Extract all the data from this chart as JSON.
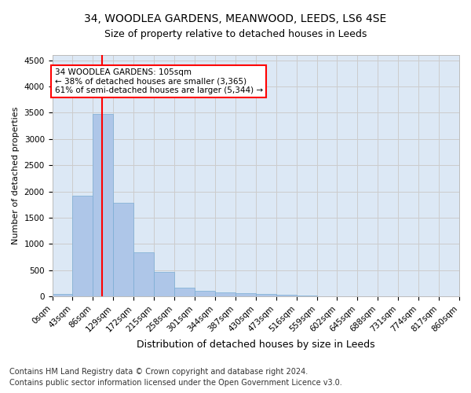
{
  "title1": "34, WOODLEA GARDENS, MEANWOOD, LEEDS, LS6 4SE",
  "title2": "Size of property relative to detached houses in Leeds",
  "xlabel": "Distribution of detached houses by size in Leeds",
  "ylabel": "Number of detached properties",
  "bar_color": "#aec6e8",
  "bar_edge_color": "#7aadd4",
  "bin_edges": [
    0,
    43,
    86,
    129,
    172,
    215,
    258,
    301,
    344,
    387,
    430,
    473,
    516,
    559,
    602,
    645,
    688,
    731,
    774,
    817,
    860
  ],
  "bar_heights": [
    50,
    1920,
    3480,
    1780,
    840,
    460,
    160,
    100,
    70,
    55,
    40,
    35,
    10,
    5,
    3,
    2,
    1,
    1,
    0,
    0
  ],
  "property_size": 105,
  "annotation_line1": "34 WOODLEA GARDENS: 105sqm",
  "annotation_line2": "← 38% of detached houses are smaller (3,365)",
  "annotation_line3": "61% of semi-detached houses are larger (5,344) →",
  "annotation_box_color": "white",
  "annotation_box_edge_color": "red",
  "vline_color": "red",
  "ylim": [
    0,
    4600
  ],
  "yticks": [
    0,
    500,
    1000,
    1500,
    2000,
    2500,
    3000,
    3500,
    4000,
    4500
  ],
  "grid_color": "#cccccc",
  "bg_color": "#dce8f5",
  "footer1": "Contains HM Land Registry data © Crown copyright and database right 2024.",
  "footer2": "Contains public sector information licensed under the Open Government Licence v3.0.",
  "title1_fontsize": 10,
  "title2_fontsize": 9,
  "xlabel_fontsize": 9,
  "ylabel_fontsize": 8,
  "tick_fontsize": 7.5,
  "annot_fontsize": 7.5,
  "footer_fontsize": 7
}
